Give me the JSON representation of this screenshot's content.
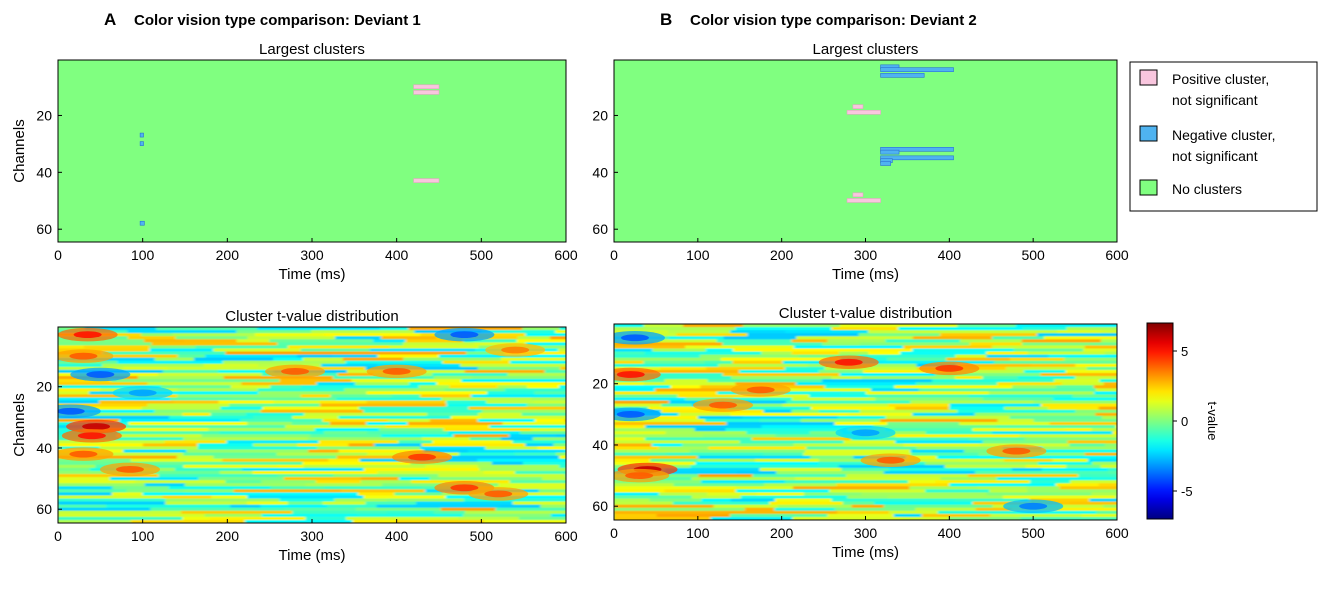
{
  "figure": {
    "panels": [
      {
        "letter": "A",
        "title": "Color vision type comparison: Deviant 1"
      },
      {
        "letter": "B",
        "title": "Color vision type comparison: Deviant 2"
      }
    ],
    "legend": [
      {
        "label_lines": [
          "Positive cluster,",
          "not significant"
        ],
        "color": "#f9c6de"
      },
      {
        "label_lines": [
          "Negative cluster,",
          "not significant"
        ],
        "color": "#4fb3f0"
      },
      {
        "label_lines": [
          "No clusters"
        ],
        "color": "#80ff80"
      }
    ],
    "colorbar": {
      "label": "t-value",
      "min": -7,
      "max": 7,
      "ticks": [
        -5,
        0,
        5
      ]
    }
  },
  "chart_data": [
    {
      "id": "A-top",
      "type": "heatmap",
      "title": "Largest clusters",
      "xlabel": "Time (ms)",
      "ylabel": "Channels",
      "xlim": [
        0,
        600
      ],
      "ylim": [
        1,
        64
      ],
      "xticks": [
        0,
        100,
        200,
        300,
        400,
        500,
        600
      ],
      "yticks": [
        20,
        40,
        60
      ],
      "background": "No clusters",
      "clusters": [
        {
          "sign": "positive",
          "channel": 10,
          "t_start": 420,
          "t_end": 450
        },
        {
          "sign": "positive",
          "channel": 12,
          "t_start": 420,
          "t_end": 450
        },
        {
          "sign": "positive",
          "channel": 43,
          "t_start": 420,
          "t_end": 450
        },
        {
          "sign": "negative",
          "channel": 27,
          "t_start": 97,
          "t_end": 101
        },
        {
          "sign": "negative",
          "channel": 30,
          "t_start": 97,
          "t_end": 101
        },
        {
          "sign": "negative",
          "channel": 58,
          "t_start": 97,
          "t_end": 102
        }
      ]
    },
    {
      "id": "A-bottom",
      "type": "heatmap",
      "title": "Cluster t-value distribution",
      "xlabel": "Time (ms)",
      "ylabel": "Channels",
      "xlim": [
        0,
        600
      ],
      "ylim": [
        1,
        64
      ],
      "xticks": [
        0,
        100,
        200,
        300,
        400,
        500,
        600
      ],
      "yticks": [
        20,
        40,
        60
      ],
      "value_range": [
        -7,
        7
      ],
      "hotspots": [
        {
          "channel": 3,
          "t": 35,
          "value": 5
        },
        {
          "channel": 10,
          "t": 30,
          "value": 4
        },
        {
          "channel": 33,
          "t": 45,
          "value": 6
        },
        {
          "channel": 36,
          "t": 40,
          "value": 5
        },
        {
          "channel": 42,
          "t": 30,
          "value": 4
        },
        {
          "channel": 47,
          "t": 85,
          "value": 4
        },
        {
          "channel": 15,
          "t": 280,
          "value": 4
        },
        {
          "channel": 15,
          "t": 400,
          "value": 4
        },
        {
          "channel": 43,
          "t": 430,
          "value": 4.5
        },
        {
          "channel": 53,
          "t": 480,
          "value": 4.5
        },
        {
          "channel": 55,
          "t": 520,
          "value": 4
        },
        {
          "channel": 8,
          "t": 540,
          "value": 3.5
        },
        {
          "channel": 3,
          "t": 480,
          "value": -4
        },
        {
          "channel": 16,
          "t": 50,
          "value": -4
        },
        {
          "channel": 28,
          "t": 15,
          "value": -4
        },
        {
          "channel": 22,
          "t": 100,
          "value": -3
        }
      ]
    },
    {
      "id": "B-top",
      "type": "heatmap",
      "title": "Largest clusters",
      "xlabel": "Time (ms)",
      "ylabel": "",
      "xlim": [
        0,
        600
      ],
      "ylim": [
        1,
        64
      ],
      "xticks": [
        0,
        100,
        200,
        300,
        400,
        500,
        600
      ],
      "yticks": [
        20,
        40,
        60
      ],
      "background": "No clusters",
      "clusters": [
        {
          "sign": "negative",
          "channel": 3,
          "t_start": 318,
          "t_end": 340
        },
        {
          "sign": "negative",
          "channel": 4,
          "t_start": 318,
          "t_end": 405
        },
        {
          "sign": "negative",
          "channel": 6,
          "t_start": 318,
          "t_end": 370
        },
        {
          "sign": "positive",
          "channel": 17,
          "t_start": 285,
          "t_end": 297
        },
        {
          "sign": "positive",
          "channel": 19,
          "t_start": 278,
          "t_end": 318
        },
        {
          "sign": "negative",
          "channel": 32,
          "t_start": 318,
          "t_end": 405
        },
        {
          "sign": "negative",
          "channel": 33,
          "t_start": 318,
          "t_end": 340
        },
        {
          "sign": "negative",
          "channel": 35,
          "t_start": 318,
          "t_end": 405
        },
        {
          "sign": "negative",
          "channel": 36,
          "t_start": 318,
          "t_end": 332
        },
        {
          "sign": "negative",
          "channel": 37,
          "t_start": 318,
          "t_end": 330
        },
        {
          "sign": "positive",
          "channel": 48,
          "t_start": 285,
          "t_end": 297
        },
        {
          "sign": "positive",
          "channel": 50,
          "t_start": 278,
          "t_end": 318
        }
      ]
    },
    {
      "id": "B-bottom",
      "type": "heatmap",
      "title": "Cluster t-value distribution",
      "xlabel": "Time (ms)",
      "ylabel": "",
      "xlim": [
        0,
        600
      ],
      "ylim": [
        1,
        64
      ],
      "xticks": [
        0,
        100,
        200,
        300,
        400,
        500,
        600
      ],
      "yticks": [
        20,
        40,
        60
      ],
      "value_range": [
        -7,
        7
      ],
      "hotspots": [
        {
          "channel": 17,
          "t": 20,
          "value": 5
        },
        {
          "channel": 48,
          "t": 40,
          "value": 6
        },
        {
          "channel": 50,
          "t": 30,
          "value": 4
        },
        {
          "channel": 22,
          "t": 175,
          "value": 4
        },
        {
          "channel": 27,
          "t": 130,
          "value": 4
        },
        {
          "channel": 13,
          "t": 280,
          "value": 5
        },
        {
          "channel": 15,
          "t": 400,
          "value": 4.5
        },
        {
          "channel": 45,
          "t": 330,
          "value": 4
        },
        {
          "channel": 42,
          "t": 480,
          "value": 4
        },
        {
          "channel": 30,
          "t": 20,
          "value": -4
        },
        {
          "channel": 5,
          "t": 25,
          "value": -4
        },
        {
          "channel": 60,
          "t": 500,
          "value": -3.5
        },
        {
          "channel": 36,
          "t": 300,
          "value": -3
        }
      ]
    }
  ]
}
